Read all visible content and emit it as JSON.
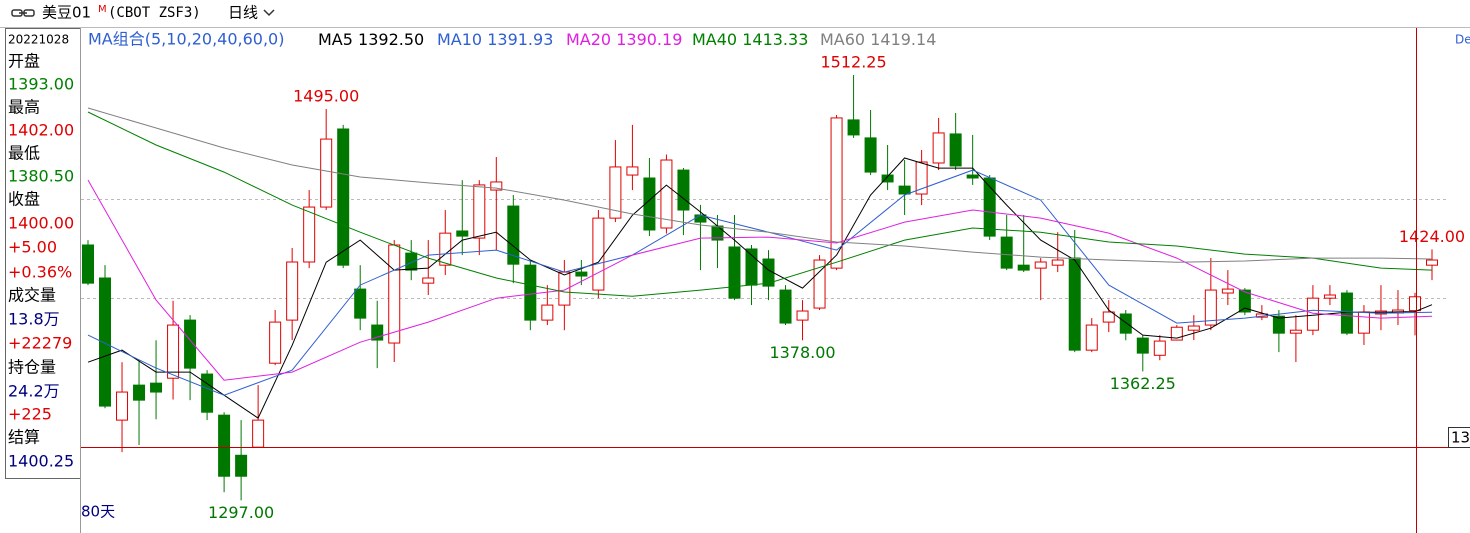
{
  "toolbar": {
    "symbol": "美豆01",
    "flag": "M",
    "exchange": "(CBOT ZSF3)",
    "period": "日线"
  },
  "info_panel": [
    {
      "text": "20221028"
    },
    {
      "text": "开盘"
    },
    {
      "text": "1393.00",
      "color": "#008000"
    },
    {
      "text": "最高"
    },
    {
      "text": "1402.00",
      "color": "#e00000"
    },
    {
      "text": "最低"
    },
    {
      "text": "1380.50",
      "color": "#008000"
    },
    {
      "text": "收盘"
    },
    {
      "text": "1400.00",
      "color": "#e00000"
    },
    {
      "text": "+5.00",
      "color": "#e00000"
    },
    {
      "text": "+0.36%",
      "color": "#e00000"
    },
    {
      "text": "成交量"
    },
    {
      "text": "13.8万",
      "color": "#000080"
    },
    {
      "text": "+22279",
      "color": "#e00000"
    },
    {
      "text": "持仓量"
    },
    {
      "text": "24.2万",
      "color": "#000080"
    },
    {
      "text": "+225",
      "color": "#e00000"
    },
    {
      "text": "结算"
    },
    {
      "text": "1400.25",
      "color": "#000080"
    }
  ],
  "footer": "80天",
  "edge_labels": [
    "De",
    "13"
  ],
  "chart_data": {
    "type": "candlestick",
    "ma_title": "MA组合(5,10,20,40,60,0)",
    "ylim": [
      1282,
      1536
    ],
    "up_color": "#e00000",
    "down_color": "#007800",
    "open": [
      1426.2,
      1409.5,
      1337.6,
      1355.3,
      1356.3,
      1358.8,
      1388.2,
      1360.9,
      1340.1,
      1319.8,
      1323.9,
      1366.4,
      1388.2,
      1417.6,
      1445.4,
      1484.9,
      1403.9,
      1385.7,
      1376.6,
      1422.1,
      1406.9,
      1416,
      1433.3,
      1429.7,
      1454,
      1445.9,
      1416,
      1388.2,
      1395.8,
      1412.5,
      1403.4,
      1439.8,
      1461.6,
      1460.1,
      1434.8,
      1464.1,
      1441.4,
      1435.8,
      1425.2,
      1424.2,
      1419.1,
      1403.4,
      1388.2,
      1394.3,
      1414.5,
      1489.5,
      1480.4,
      1461.6,
      1456,
      1452,
      1467.7,
      1482.4,
      1461.6,
      1460.1,
      1430.2,
      1416,
      1414.5,
      1416,
      1419.6,
      1373,
      1387.2,
      1391.3,
      1379.1,
      1370.4,
      1378.1,
      1383.1,
      1385.7,
      1401.9,
      1403.4,
      1389.7,
      1390.2,
      1381.6,
      1383.1,
      1399.3,
      1401.9,
      1381.6,
      1391.3,
      1391.8,
      1393,
      1416
    ],
    "high": [
      1428.7,
      1416,
      1366.9,
      1368,
      1378,
      1398,
      1390.7,
      1362.9,
      1341.6,
      1337.6,
      1355.3,
      1393.3,
      1424.7,
      1454,
      1495,
      1487,
      1416,
      1398,
      1428.7,
      1428.7,
      1428.7,
      1443.9,
      1459,
      1459,
      1470.7,
      1451.5,
      1418.6,
      1405.9,
      1418.6,
      1418.6,
      1443.9,
      1479.3,
      1487,
      1470.2,
      1472,
      1465.2,
      1446.5,
      1441.4,
      1441.4,
      1426.2,
      1423.6,
      1405.9,
      1398.3,
      1421.1,
      1492,
      1512.25,
      1494.5,
      1476.8,
      1469.2,
      1474.3,
      1490.5,
      1493,
      1481.9,
      1461.6,
      1441.4,
      1441.4,
      1419.6,
      1432.7,
      1433.8,
      1389.2,
      1398.3,
      1393.3,
      1380.6,
      1380.6,
      1385.7,
      1390.7,
      1419.6,
      1413.5,
      1404.4,
      1395.8,
      1393.3,
      1390.7,
      1405.9,
      1405.9,
      1403.4,
      1395.8,
      1405.9,
      1403.4,
      1402,
      1424
    ],
    "low": [
      1405.9,
      1343.6,
      1321.4,
      1325,
      1338,
      1348,
      1347.7,
      1337.6,
      1301.1,
      1297,
      1323.9,
      1365.4,
      1378.1,
      1414.5,
      1443.9,
      1414.5,
      1383.1,
      1363.9,
      1367,
      1408.4,
      1400.9,
      1411,
      1421.1,
      1421.1,
      1423.6,
      1406.9,
      1383.1,
      1385.7,
      1383.1,
      1405.9,
      1399.3,
      1437.8,
      1454,
      1430.7,
      1432,
      1431.2,
      1413.5,
      1414.5,
      1398.3,
      1395.8,
      1398.3,
      1385.7,
      1378,
      1393.3,
      1413.5,
      1480.4,
      1461.6,
      1454,
      1441.4,
      1446.4,
      1464.1,
      1464.1,
      1456.6,
      1428.7,
      1413.5,
      1412.5,
      1398.3,
      1412.5,
      1372,
      1372,
      1382.1,
      1378,
      1362.25,
      1367.9,
      1378.1,
      1378.1,
      1383.1,
      1395.8,
      1390.7,
      1388.2,
      1372,
      1367,
      1380.6,
      1395.8,
      1380.6,
      1375.6,
      1383.1,
      1385.7,
      1380.5,
      1408.4
    ],
    "close": [
      1406.9,
      1344.7,
      1351.8,
      1347.7,
      1351.8,
      1385.7,
      1363.9,
      1341.6,
      1309.2,
      1309.2,
      1337.6,
      1387.2,
      1417.6,
      1445.4,
      1479.8,
      1416,
      1389.2,
      1378.1,
      1426.2,
      1413.5,
      1409.5,
      1432.2,
      1430.7,
      1456.6,
      1458.1,
      1416.5,
      1388.2,
      1395.8,
      1412.5,
      1410.5,
      1439.8,
      1465.7,
      1465.7,
      1433.8,
      1469.2,
      1443.9,
      1437.8,
      1428.7,
      1399.3,
      1405.9,
      1405.4,
      1386.7,
      1392.8,
      1418.6,
      1490.5,
      1481.9,
      1463.1,
      1458.1,
      1452,
      1468.2,
      1482.9,
      1466.2,
      1460.1,
      1430.7,
      1414.5,
      1413.5,
      1417.6,
      1418.6,
      1373,
      1385.7,
      1392.3,
      1381.6,
      1371.5,
      1377.6,
      1384.6,
      1385.2,
      1403.4,
      1403.9,
      1392.3,
      1391.3,
      1381.6,
      1383.1,
      1399.3,
      1400.9,
      1381.6,
      1392.3,
      1392.8,
      1393.3,
      1400,
      1418.6
    ],
    "series": [
      {
        "name": "MA5",
        "color": "#000000",
        "legend_label": "1392.50",
        "x": [
          0,
          2,
          4,
          6,
          8,
          10,
          12,
          14,
          16,
          18,
          20,
          22,
          24,
          26,
          28,
          30,
          32,
          34,
          36,
          38,
          40,
          42,
          44,
          46,
          48,
          50,
          52,
          54,
          56,
          58,
          60,
          62,
          64,
          66,
          68,
          70,
          72,
          74,
          76,
          78,
          79
        ],
        "values": [
          1366.9,
          1373,
          1361.9,
          1361.9,
          1350.2,
          1338.6,
          1375.5,
          1417.5,
          1428.7,
          1413.5,
          1414.5,
          1428.7,
          1432.7,
          1418.6,
          1411,
          1417.5,
          1441.3,
          1456.5,
          1442.9,
          1428.7,
          1413.5,
          1404.4,
          1421.1,
          1451.5,
          1470.2,
          1465.1,
          1465.1,
          1446.4,
          1428.7,
          1418.6,
          1393.2,
          1380.6,
          1379.1,
          1384.1,
          1394.3,
          1389.2,
          1390.7,
          1392.2,
          1392.2,
          1392.5,
          1396
        ]
      },
      {
        "name": "MA10",
        "color": "#2f5fd0",
        "legend_label": "1391.93",
        "x": [
          0,
          4,
          8,
          12,
          16,
          20,
          24,
          28,
          32,
          36,
          40,
          44,
          48,
          52,
          56,
          60,
          64,
          68,
          72,
          76,
          79
        ],
        "values": [
          1380.6,
          1363.9,
          1350.2,
          1362.9,
          1405.9,
          1421.1,
          1423.6,
          1412.5,
          1421.1,
          1441.3,
          1432.7,
          1423.6,
          1451.5,
          1464.1,
          1448.9,
          1405.9,
          1386.7,
          1389.2,
          1393.2,
          1391.7,
          1392.2
        ]
      },
      {
        "name": "MA20",
        "color": "#e020e0",
        "legend_label": "1390.19",
        "x": [
          0,
          4,
          8,
          12,
          16,
          20,
          24,
          28,
          32,
          36,
          40,
          44,
          48,
          52,
          56,
          60,
          64,
          68,
          72,
          76,
          79
        ],
        "values": [
          1459.1,
          1398.3,
          1357.8,
          1361.9,
          1377,
          1387.2,
          1399.3,
          1403.4,
          1421.1,
          1429.7,
          1430.2,
          1427.2,
          1437.8,
          1443.9,
          1439.8,
          1432.2,
          1419.6,
          1402.4,
          1391.7,
          1389.2,
          1390.2
        ]
      },
      {
        "name": "MA40",
        "color": "#008000",
        "legend_label": "1413.33",
        "x": [
          0,
          4,
          8,
          12,
          16,
          20,
          24,
          28,
          32,
          36,
          40,
          44,
          48,
          52,
          56,
          60,
          64,
          68,
          72,
          76,
          79
        ],
        "values": [
          1493.5,
          1476.8,
          1463.1,
          1446.4,
          1432.7,
          1419.6,
          1409.5,
          1402.4,
          1400.3,
          1403.4,
          1406.9,
          1417.5,
          1428.7,
          1434.8,
          1432.7,
          1427.7,
          1425.7,
          1421.6,
          1419.6,
          1414.5,
          1413.5
        ]
      },
      {
        "name": "MA60",
        "color": "#808080",
        "legend_label": "1419.14",
        "x": [
          0,
          4,
          8,
          12,
          16,
          20,
          24,
          28,
          32,
          36,
          40,
          44,
          48,
          52,
          56,
          60,
          64,
          68,
          72,
          76,
          79
        ],
        "values": [
          1495.5,
          1485.4,
          1475.3,
          1466.7,
          1460.6,
          1457.6,
          1455,
          1448.9,
          1441.9,
          1436.3,
          1432.7,
          1427.7,
          1425.7,
          1422.6,
          1420.1,
          1418.6,
          1417.5,
          1418.1,
          1419.6,
          1419.6,
          1419.1
        ]
      }
    ],
    "annotations": [
      {
        "x": 14,
        "value": 1495,
        "label": "1495.00",
        "side": "high"
      },
      {
        "x": 45,
        "value": 1512.25,
        "label": "1512.25",
        "side": "high"
      },
      {
        "x": 79,
        "value": 1424,
        "label": "1424.00",
        "side": "high"
      },
      {
        "x": 9,
        "value": 1297,
        "label": "1297.00",
        "side": "low"
      },
      {
        "x": 42,
        "value": 1378,
        "label": "1378.00",
        "side": "low"
      },
      {
        "x": 62,
        "value": 1362.25,
        "label": "1362.25",
        "side": "low"
      }
    ]
  }
}
